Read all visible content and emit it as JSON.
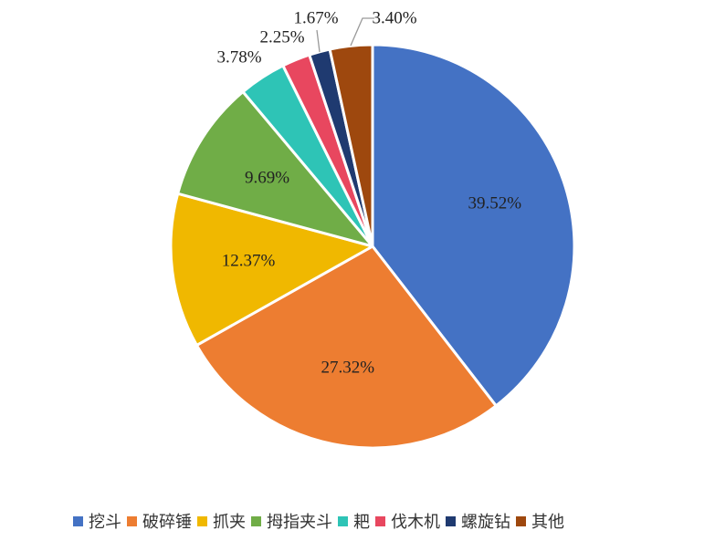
{
  "chart_data": {
    "type": "pie",
    "categories": [
      "挖斗",
      "破碎锤",
      "抓夹",
      "拇指夹斗",
      "耙",
      "伐木机",
      "螺旋钻",
      "其他"
    ],
    "values": [
      39.52,
      27.32,
      12.37,
      9.69,
      3.78,
      2.25,
      1.67,
      3.4
    ],
    "labels": [
      "39.52%",
      "27.32%",
      "12.37%",
      "9.69%",
      "3.78%",
      "2.25%",
      "1.67%",
      "3.40%"
    ],
    "colors": [
      "#4472C4",
      "#ED7D31",
      "#F0B800",
      "#70AD47",
      "#2EC4B6",
      "#E8475F",
      "#1F3A70",
      "#9E480E"
    ],
    "legend_position": "bottom"
  }
}
